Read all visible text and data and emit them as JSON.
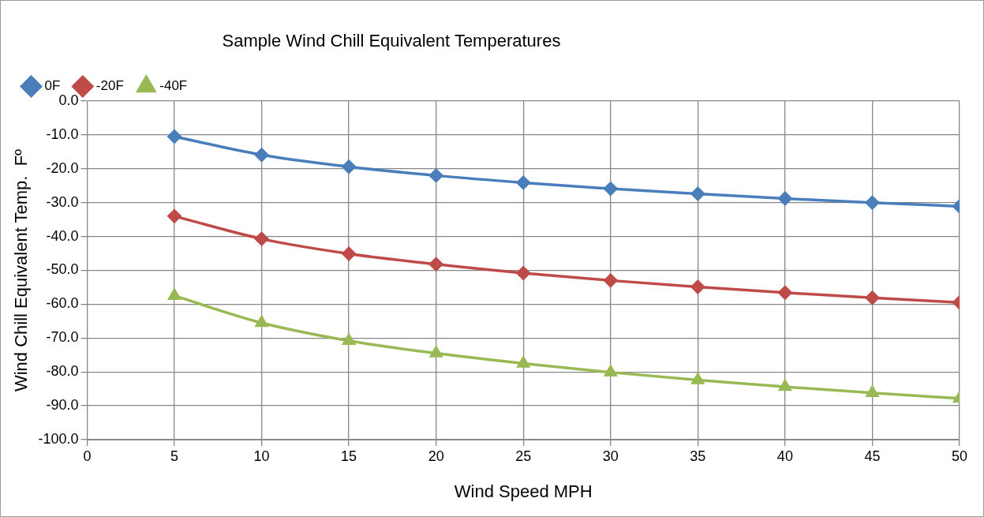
{
  "chart_data": {
    "type": "line",
    "title": "Sample Wind Chill Equivalent Temperatures",
    "xlabel": "Wind Speed MPH",
    "ylabel": "Wind Chill Equivalent Temp.  Fº",
    "x": [
      5,
      10,
      15,
      20,
      25,
      30,
      35,
      40,
      45,
      50
    ],
    "series": [
      {
        "name": "0F",
        "color": "#4a7ebb",
        "marker": "diamond",
        "values": [
          -10.5,
          -15.9,
          -19.4,
          -22.0,
          -24.1,
          -25.9,
          -27.4,
          -28.8,
          -30.0,
          -31.1
        ]
      },
      {
        "name": "-20F",
        "color": "#be4b48",
        "marker": "diamond",
        "values": [
          -34.0,
          -40.7,
          -45.1,
          -48.2,
          -50.8,
          -53.0,
          -54.9,
          -56.6,
          -58.1,
          -59.5
        ]
      },
      {
        "name": "-40F",
        "color": "#98b954",
        "marker": "triangle",
        "values": [
          -57.5,
          -65.5,
          -70.8,
          -74.5,
          -77.5,
          -80.1,
          -82.4,
          -84.4,
          -86.2,
          -87.8
        ]
      }
    ],
    "xlim": [
      0,
      50
    ],
    "xticks": [
      0,
      5,
      10,
      15,
      20,
      25,
      30,
      35,
      40,
      45,
      50
    ],
    "ylim": [
      -100,
      0
    ],
    "yticks": [
      {
        "value": 0,
        "label": "0.0"
      },
      {
        "value": -10,
        "label": "-10.0"
      },
      {
        "value": -20,
        "label": "-20.0"
      },
      {
        "value": -30,
        "label": "-30.0"
      },
      {
        "value": -40,
        "label": "-40.0"
      },
      {
        "value": -50,
        "label": "-50.0"
      },
      {
        "value": -60,
        "label": "-60.0"
      },
      {
        "value": -70,
        "label": "-70.0"
      },
      {
        "value": -80,
        "label": "-80.0"
      },
      {
        "value": -90,
        "label": "-90.0"
      },
      {
        "value": -100,
        "label": "-100.0"
      }
    ],
    "grid": true,
    "legend": "top left",
    "line_style": "solid"
  }
}
